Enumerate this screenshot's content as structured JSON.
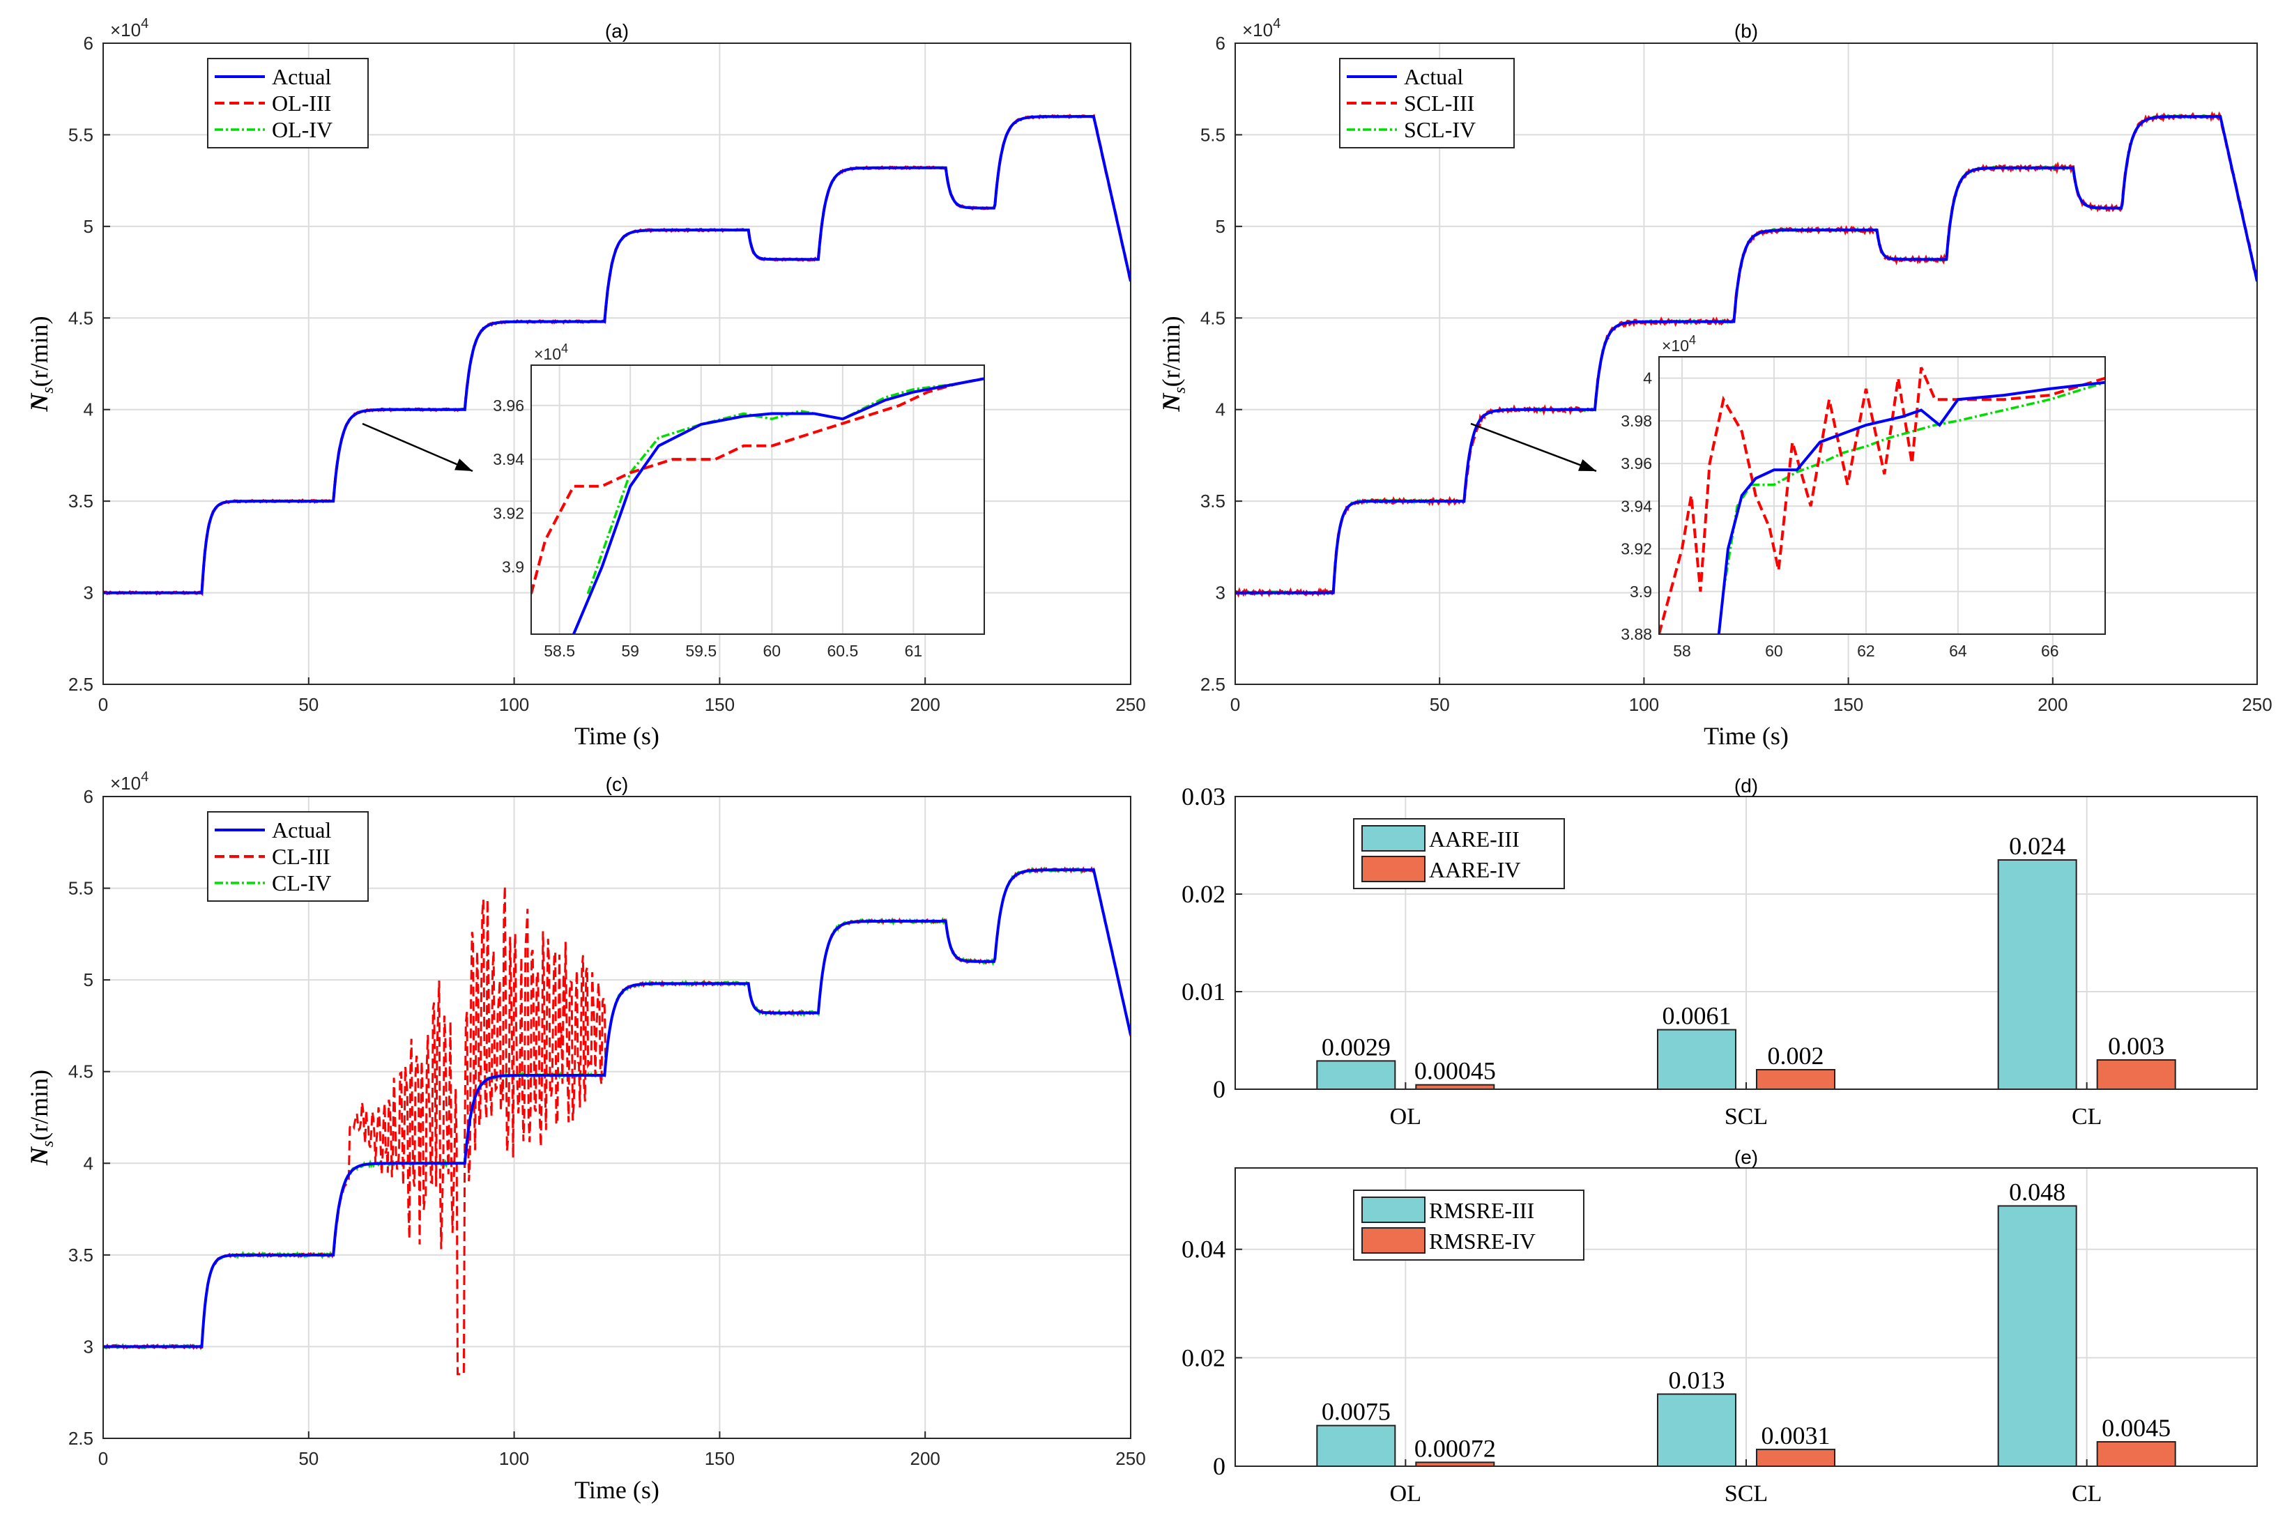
{
  "colors": {
    "actual": "#0000ff",
    "iii": "#ff0000",
    "iv": "#00dd00",
    "bar_iii": "#7fd1d3",
    "bar_iv": "#ee6f4e",
    "grid": "#dcdcdc"
  },
  "common": {
    "xlabel": "Time (s)",
    "ylabel": "N_s(r/min)",
    "ylabel_main": "N",
    "ylabel_sub": "s",
    "ylabel_rest": "(r/min)",
    "exponent": "×10",
    "exponent_power": "4"
  },
  "chart_data": [
    {
      "id": "a",
      "type": "line",
      "title": "(a)",
      "xlim": [
        0,
        250
      ],
      "ylim": [
        2.5,
        6
      ],
      "y_scale": "×10^4",
      "xticks": [
        "0",
        "50",
        "100",
        "150",
        "200",
        "250"
      ],
      "yticks": [
        "2.5",
        "3",
        "3.5",
        "4",
        "4.5",
        "5",
        "5.5",
        "6"
      ],
      "legend": [
        "Actual",
        "OL-III",
        "OL-IV"
      ],
      "series": [
        {
          "name": "Actual",
          "profile": "base",
          "noise": 0
        },
        {
          "name": "OL-III",
          "profile": "base",
          "noise": 0.004
        },
        {
          "name": "OL-IV",
          "profile": "base",
          "noise": 0.002
        }
      ],
      "inset": {
        "xlim": [
          58.3,
          61.5
        ],
        "ylim": [
          3.875,
          3.975
        ],
        "xticks": [
          "58.5",
          "59",
          "59.5",
          "60",
          "60.5",
          "61"
        ],
        "yticks": [
          "3.9",
          "3.92",
          "3.94",
          "3.96"
        ],
        "series": [
          {
            "name": "Actual",
            "points": [
              [
                58.6,
                3.875
              ],
              [
                58.8,
                3.9
              ],
              [
                59.0,
                3.93
              ],
              [
                59.2,
                3.945
              ],
              [
                59.5,
                3.953
              ],
              [
                59.8,
                3.956
              ],
              [
                60.0,
                3.957
              ],
              [
                60.3,
                3.957
              ],
              [
                60.5,
                3.955
              ],
              [
                60.8,
                3.962
              ],
              [
                61.0,
                3.965
              ],
              [
                61.2,
                3.967
              ],
              [
                61.5,
                3.97
              ]
            ]
          },
          {
            "name": "OL-III",
            "points": [
              [
                58.3,
                3.89
              ],
              [
                58.4,
                3.91
              ],
              [
                58.6,
                3.93
              ],
              [
                58.8,
                3.93
              ],
              [
                59.0,
                3.935
              ],
              [
                59.3,
                3.94
              ],
              [
                59.6,
                3.94
              ],
              [
                59.8,
                3.945
              ],
              [
                60.0,
                3.945
              ],
              [
                60.3,
                3.95
              ],
              [
                60.6,
                3.955
              ],
              [
                60.9,
                3.96
              ],
              [
                61.1,
                3.965
              ],
              [
                61.3,
                3.968
              ],
              [
                61.5,
                3.97
              ]
            ]
          },
          {
            "name": "OL-IV",
            "points": [
              [
                58.7,
                3.89
              ],
              [
                58.9,
                3.92
              ],
              [
                59.0,
                3.935
              ],
              [
                59.2,
                3.948
              ],
              [
                59.5,
                3.953
              ],
              [
                59.8,
                3.957
              ],
              [
                60.0,
                3.955
              ],
              [
                60.2,
                3.958
              ],
              [
                60.5,
                3.955
              ],
              [
                60.8,
                3.963
              ],
              [
                61.0,
                3.966
              ],
              [
                61.3,
                3.968
              ],
              [
                61.5,
                3.97
              ]
            ]
          }
        ]
      }
    },
    {
      "id": "b",
      "type": "line",
      "title": "(b)",
      "xlim": [
        0,
        250
      ],
      "ylim": [
        2.5,
        6
      ],
      "y_scale": "×10^4",
      "xticks": [
        "0",
        "50",
        "100",
        "150",
        "200",
        "250"
      ],
      "yticks": [
        "2.5",
        "3",
        "3.5",
        "4",
        "4.5",
        "5",
        "5.5",
        "6"
      ],
      "legend": [
        "Actual",
        "SCL-III",
        "SCL-IV"
      ],
      "series": [
        {
          "name": "Actual",
          "profile": "base",
          "noise": 0
        },
        {
          "name": "SCL-III",
          "profile": "base",
          "noise": 0.01
        },
        {
          "name": "SCL-IV",
          "profile": "base",
          "noise": 0.006
        }
      ],
      "inset": {
        "xlim": [
          57.5,
          67.2
        ],
        "ylim": [
          3.88,
          4.01
        ],
        "xticks": [
          "58",
          "60",
          "62",
          "64",
          "66"
        ],
        "yticks": [
          "3.88",
          "3.9",
          "3.92",
          "3.94",
          "3.96",
          "3.98",
          "4"
        ],
        "series": [
          {
            "name": "Actual",
            "points": [
              [
                58.8,
                3.88
              ],
              [
                59.0,
                3.92
              ],
              [
                59.3,
                3.945
              ],
              [
                59.6,
                3.953
              ],
              [
                60.0,
                3.957
              ],
              [
                60.5,
                3.957
              ],
              [
                61.0,
                3.97
              ],
              [
                62.0,
                3.978
              ],
              [
                62.8,
                3.982
              ],
              [
                63.2,
                3.985
              ],
              [
                63.6,
                3.978
              ],
              [
                64.0,
                3.99
              ],
              [
                65.0,
                3.992
              ],
              [
                66.0,
                3.995
              ],
              [
                67.2,
                3.998
              ]
            ]
          },
          {
            "name": "SCL-III",
            "points": [
              [
                57.5,
                3.88
              ],
              [
                58.0,
                3.92
              ],
              [
                58.2,
                3.945
              ],
              [
                58.4,
                3.9
              ],
              [
                58.6,
                3.96
              ],
              [
                58.9,
                3.99
              ],
              [
                59.3,
                3.975
              ],
              [
                59.6,
                3.945
              ],
              [
                59.9,
                3.93
              ],
              [
                60.1,
                3.91
              ],
              [
                60.4,
                3.97
              ],
              [
                60.8,
                3.94
              ],
              [
                61.2,
                3.99
              ],
              [
                61.6,
                3.95
              ],
              [
                62.0,
                3.995
              ],
              [
                62.4,
                3.955
              ],
              [
                62.7,
                4.0
              ],
              [
                63.0,
                3.96
              ],
              [
                63.2,
                4.005
              ],
              [
                63.5,
                3.99
              ],
              [
                64.0,
                3.99
              ],
              [
                65.0,
                3.99
              ],
              [
                66.0,
                3.992
              ],
              [
                67.2,
                4.0
              ]
            ]
          },
          {
            "name": "SCL-IV",
            "points": [
              [
                58.9,
                3.9
              ],
              [
                59.2,
                3.94
              ],
              [
                59.5,
                3.95
              ],
              [
                60.0,
                3.95
              ],
              [
                60.5,
                3.956
              ],
              [
                61.0,
                3.96
              ],
              [
                61.5,
                3.965
              ],
              [
                62.0,
                3.968
              ],
              [
                62.5,
                3.972
              ],
              [
                63.0,
                3.975
              ],
              [
                63.5,
                3.978
              ],
              [
                64.0,
                3.98
              ],
              [
                65.0,
                3.985
              ],
              [
                66.0,
                3.99
              ],
              [
                67.2,
                3.998
              ]
            ]
          }
        ]
      }
    },
    {
      "id": "c",
      "type": "line",
      "title": "(c)",
      "xlim": [
        0,
        250
      ],
      "ylim": [
        2.5,
        6
      ],
      "y_scale": "×10^4",
      "xticks": [
        "0",
        "50",
        "100",
        "150",
        "200",
        "250"
      ],
      "yticks": [
        "2.5",
        "3",
        "3.5",
        "4",
        "4.5",
        "5",
        "5.5",
        "6"
      ],
      "legend": [
        "Actual",
        "CL-III",
        "CL-IV"
      ],
      "series": [
        {
          "name": "Actual",
          "profile": "base",
          "noise": 0
        },
        {
          "name": "CL-III",
          "profile": "base",
          "noise": 0.008,
          "oscillation": {
            "from": 60,
            "to": 122,
            "max_amplitude": 0.85
          }
        },
        {
          "name": "CL-IV",
          "profile": "base",
          "noise": 0.008
        }
      ]
    },
    {
      "id": "d",
      "type": "bar",
      "title": "(d)",
      "categories": [
        "OL",
        "SCL",
        "CL"
      ],
      "ylim": [
        0,
        0.03
      ],
      "yticks": [
        "0",
        "0.01",
        "0.02",
        "0.03"
      ],
      "series": [
        {
          "name": "AARE-III",
          "values": [
            0.0029,
            0.0061,
            0.0235
          ],
          "labels": [
            "0.0029",
            "0.0061",
            "0.024"
          ]
        },
        {
          "name": "AARE-IV",
          "values": [
            0.00045,
            0.002,
            0.003
          ],
          "labels": [
            "0.00045",
            "0.002",
            "0.003"
          ]
        }
      ]
    },
    {
      "id": "e",
      "type": "bar",
      "title": "(e)",
      "categories": [
        "OL",
        "SCL",
        "CL"
      ],
      "ylim": [
        0,
        0.055
      ],
      "yticks": [
        "0",
        "0.02",
        "0.04"
      ],
      "series": [
        {
          "name": "RMSRE-III",
          "values": [
            0.0075,
            0.0133,
            0.048
          ],
          "labels": [
            "0.0075",
            "0.013",
            "0.048"
          ]
        },
        {
          "name": "RMSRE-IV",
          "values": [
            0.00072,
            0.0031,
            0.0045
          ],
          "labels": [
            "0.00072",
            "0.0031",
            "0.0045"
          ]
        }
      ]
    }
  ]
}
